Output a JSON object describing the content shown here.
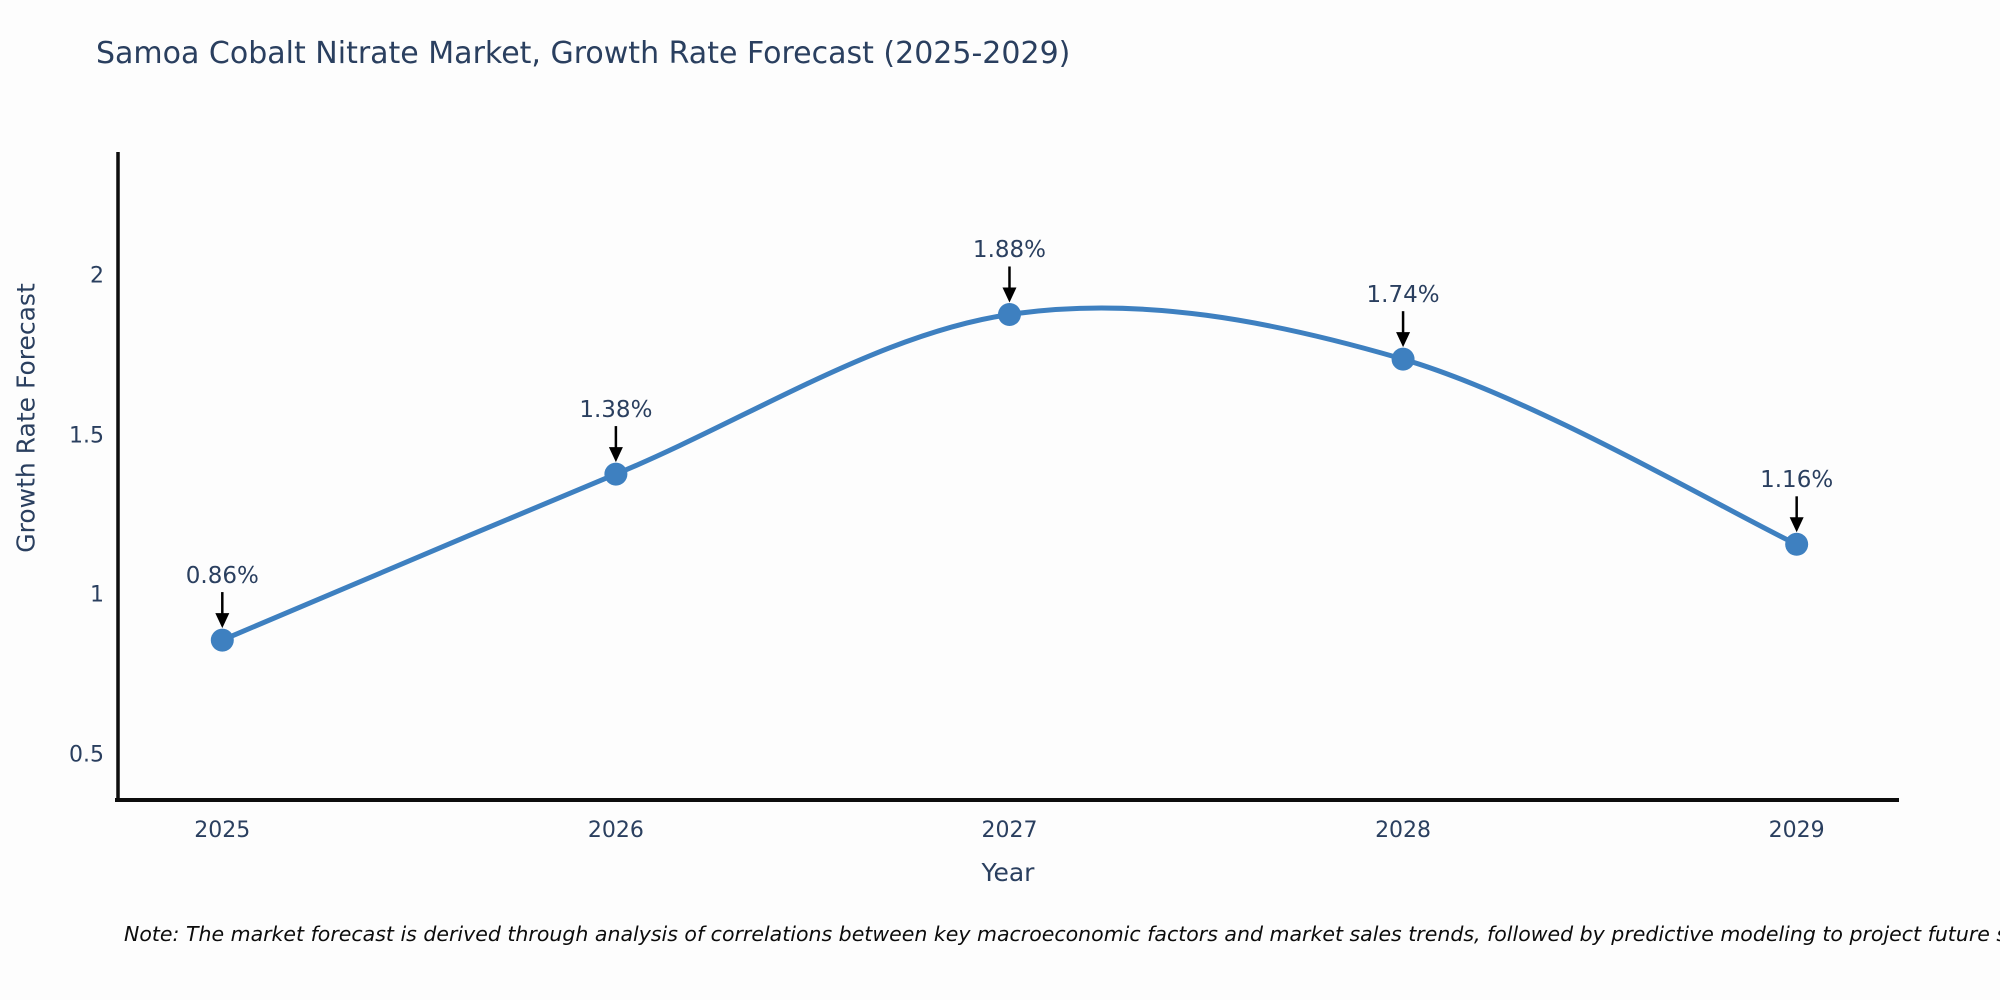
{
  "note": "Note: The market forecast is derived through analysis of correlations between key macroeconomic factors and market sales trends, followed by predictive modeling to project future sales",
  "chart_data": {
    "type": "line",
    "title": "Samoa Cobalt Nitrate Market, Growth Rate Forecast (2025-2029)",
    "xlabel": "Year",
    "ylabel": "Growth Rate Forecast",
    "x": [
      2025,
      2026,
      2027,
      2028,
      2029
    ],
    "x_tick_labels": [
      "2025",
      "2026",
      "2027",
      "2028",
      "2029"
    ],
    "series": [
      {
        "name": "Growth Rate Forecast",
        "values": [
          0.86,
          1.38,
          1.88,
          1.74,
          1.16
        ]
      }
    ],
    "point_labels": [
      "0.86%",
      "1.38%",
      "1.88%",
      "1.74%",
      "1.16%"
    ],
    "y_ticks": [
      0.5,
      1,
      1.5,
      2
    ],
    "y_tick_labels": [
      "0.5",
      "1",
      "1.5",
      "2"
    ],
    "x_range": [
      2024.735,
      2029.26
    ],
    "y_range": [
      0.359,
      2.389
    ],
    "line_shape": "spline",
    "grid": false,
    "legend_position": "none",
    "colors": {
      "line": "#3E80C0",
      "marker": "#3E80C0",
      "axis": "#0d0d0d",
      "text": "#2a3f5f",
      "annotation_arrow": "#000000",
      "note_text": "#0c0c0c",
      "background": "#fdfdfd"
    }
  }
}
